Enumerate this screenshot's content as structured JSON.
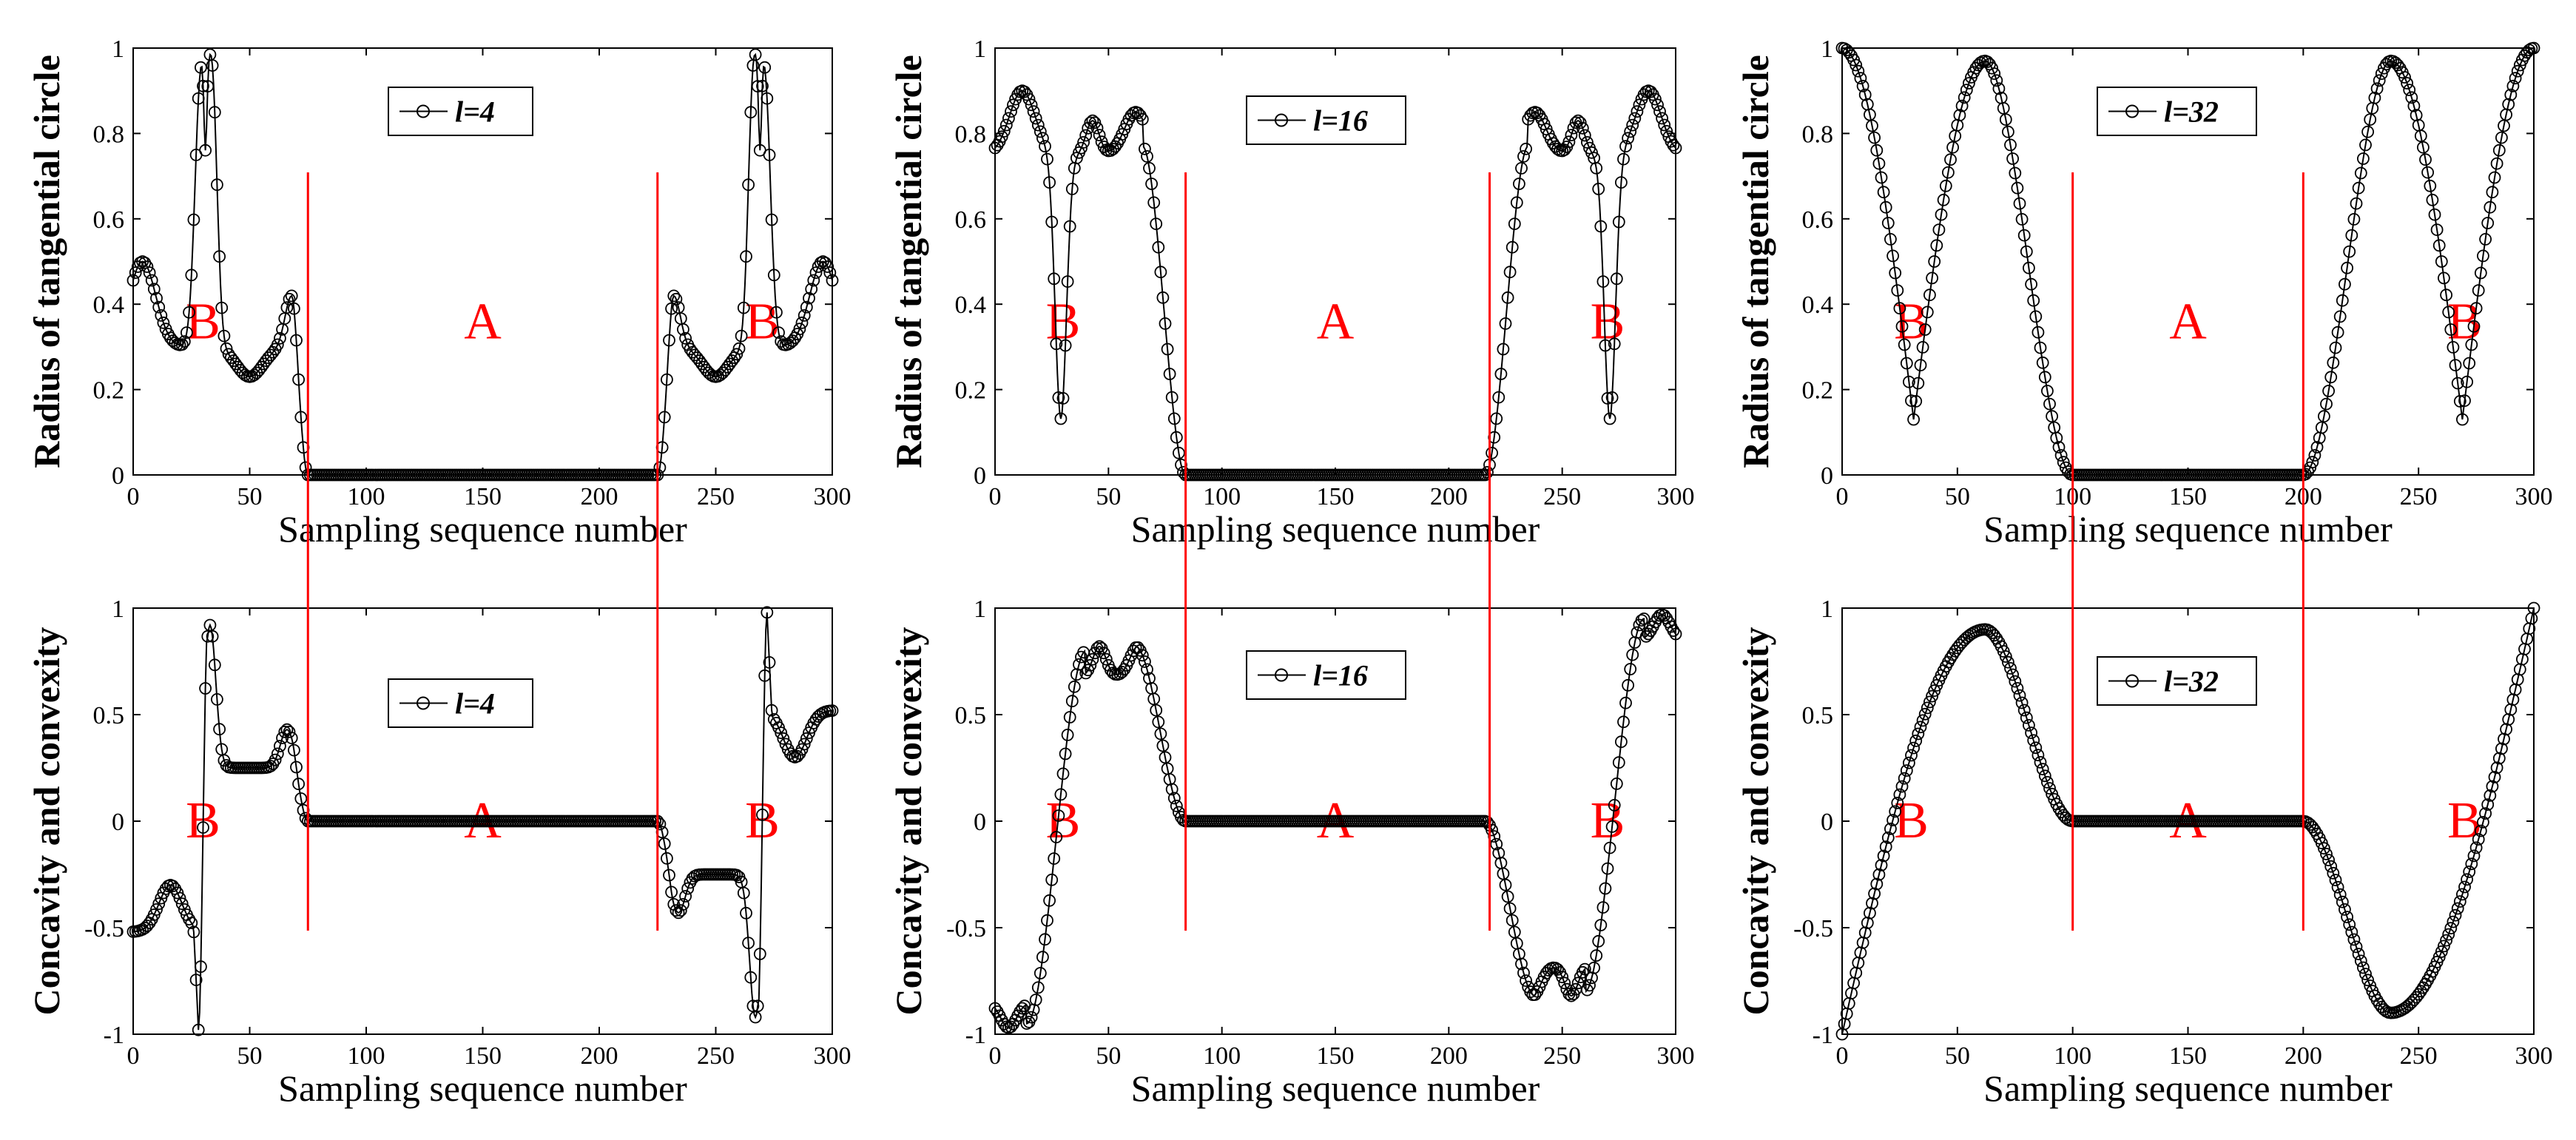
{
  "figure": {
    "background": "#ffffff",
    "marker_color": "#000000",
    "boundary_color": "#ff0000"
  },
  "chart_data": [
    {
      "type": "line",
      "id": "r4",
      "row": "radius",
      "l": 4,
      "legend_prefix": "l",
      "legend_label": "l=4",
      "xlabel": "Sampling sequence number",
      "ylabel": "Radius of tangential circle",
      "xlim": [
        0,
        300
      ],
      "ylim": [
        0,
        1
      ],
      "xticks": [
        "0",
        "50",
        "100",
        "150",
        "200",
        "250",
        "300"
      ],
      "yticks": [
        "0",
        "0.2",
        "0.4",
        "0.6",
        "0.8",
        "1"
      ],
      "boundaries": [
        75,
        225
      ],
      "region_labels": [
        "B",
        "A",
        "B"
      ],
      "region_x": [
        30,
        150,
        270
      ]
    },
    {
      "type": "line",
      "id": "r16",
      "row": "radius",
      "l": 16,
      "legend_prefix": "l",
      "legend_label": "l=16",
      "xlabel": "Sampling sequence number",
      "ylabel": "Radius of tangential circle",
      "xlim": [
        0,
        300
      ],
      "ylim": [
        0,
        1
      ],
      "xticks": [
        "0",
        "50",
        "100",
        "150",
        "200",
        "250",
        "300"
      ],
      "yticks": [
        "0",
        "0.2",
        "0.4",
        "0.6",
        "0.8",
        "1"
      ],
      "boundaries": [
        84,
        218
      ],
      "region_labels": [
        "B",
        "A",
        "B"
      ],
      "region_x": [
        30,
        150,
        270
      ]
    },
    {
      "type": "line",
      "id": "r32",
      "row": "radius",
      "l": 32,
      "legend_prefix": "l",
      "legend_label": "l=32",
      "xlabel": "Sampling sequence number",
      "ylabel": "Radius of tangential circle",
      "xlim": [
        0,
        300
      ],
      "ylim": [
        0,
        1
      ],
      "xticks": [
        "0",
        "50",
        "100",
        "150",
        "200",
        "250",
        "300"
      ],
      "yticks": [
        "0",
        "0.2",
        "0.4",
        "0.6",
        "0.8",
        "1"
      ],
      "boundaries": [
        100,
        200
      ],
      "region_labels": [
        "B",
        "A",
        "B"
      ],
      "region_x": [
        30,
        150,
        270
      ]
    },
    {
      "type": "line",
      "id": "c4",
      "row": "concavity",
      "l": 4,
      "legend_prefix": "l",
      "legend_label": "l=4",
      "xlabel": "Sampling sequence number",
      "ylabel": "Concavity and convexity",
      "xlim": [
        0,
        300
      ],
      "ylim": [
        -1,
        1
      ],
      "xticks": [
        "0",
        "50",
        "100",
        "150",
        "200",
        "250",
        "300"
      ],
      "yticks": [
        "-1",
        "-0.5",
        "0",
        "0.5",
        "1"
      ],
      "boundaries": [
        75,
        225
      ],
      "region_labels": [
        "B",
        "A",
        "B"
      ],
      "region_x": [
        30,
        150,
        270
      ]
    },
    {
      "type": "line",
      "id": "c16",
      "row": "concavity",
      "l": 16,
      "legend_prefix": "l",
      "legend_label": "l=16",
      "xlabel": "Sampling sequence number",
      "ylabel": "Concavity and convexity",
      "xlim": [
        0,
        300
      ],
      "ylim": [
        -1,
        1
      ],
      "xticks": [
        "0",
        "50",
        "100",
        "150",
        "200",
        "250",
        "300"
      ],
      "yticks": [
        "-1",
        "-0.5",
        "0",
        "0.5",
        "1"
      ],
      "boundaries": [
        84,
        218
      ],
      "region_labels": [
        "B",
        "A",
        "B"
      ],
      "region_x": [
        30,
        150,
        270
      ]
    },
    {
      "type": "line",
      "id": "c32",
      "row": "concavity",
      "l": 32,
      "legend_prefix": "l",
      "legend_label": "l=32",
      "xlabel": "Sampling sequence number",
      "ylabel": "Concavity and convexity",
      "xlim": [
        0,
        300
      ],
      "ylim": [
        -1,
        1
      ],
      "xticks": [
        "0",
        "50",
        "100",
        "150",
        "200",
        "250",
        "300"
      ],
      "yticks": [
        "-1",
        "-0.5",
        "0",
        "0.5",
        "1"
      ],
      "boundaries": [
        100,
        200
      ],
      "region_labels": [
        "B",
        "A",
        "B"
      ],
      "region_x": [
        30,
        150,
        270
      ]
    }
  ]
}
